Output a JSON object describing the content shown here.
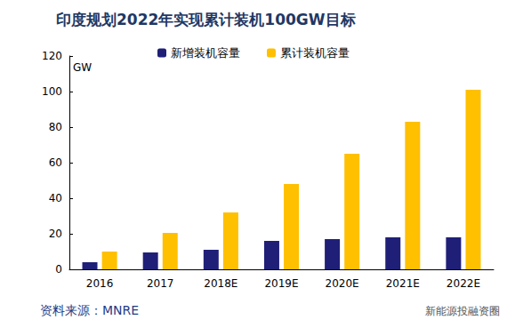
{
  "chart_data": {
    "type": "bar",
    "title": "印度规划2022年实现累计装机100GW目标",
    "y_label": "GW",
    "source": "资料来源：MNRE",
    "annotations": [
      "新能源投融资圈"
    ],
    "categories": [
      "2016",
      "2017",
      "2018E",
      "2019E",
      "2020E",
      "2021E",
      "2022E"
    ],
    "series": [
      {
        "name": "新增装机容量",
        "color": "#1f1f78",
        "values": [
          4,
          9.5,
          11,
          16,
          17,
          18,
          18
        ]
      },
      {
        "name": "累计装机容量",
        "color": "#ffc000",
        "values": [
          10,
          20.5,
          32,
          48,
          65,
          83,
          101
        ]
      }
    ],
    "ylim": [
      0,
      120
    ],
    "yticks": [
      0,
      20,
      40,
      60,
      80,
      100,
      120
    ],
    "grid": false,
    "legend": "top"
  }
}
